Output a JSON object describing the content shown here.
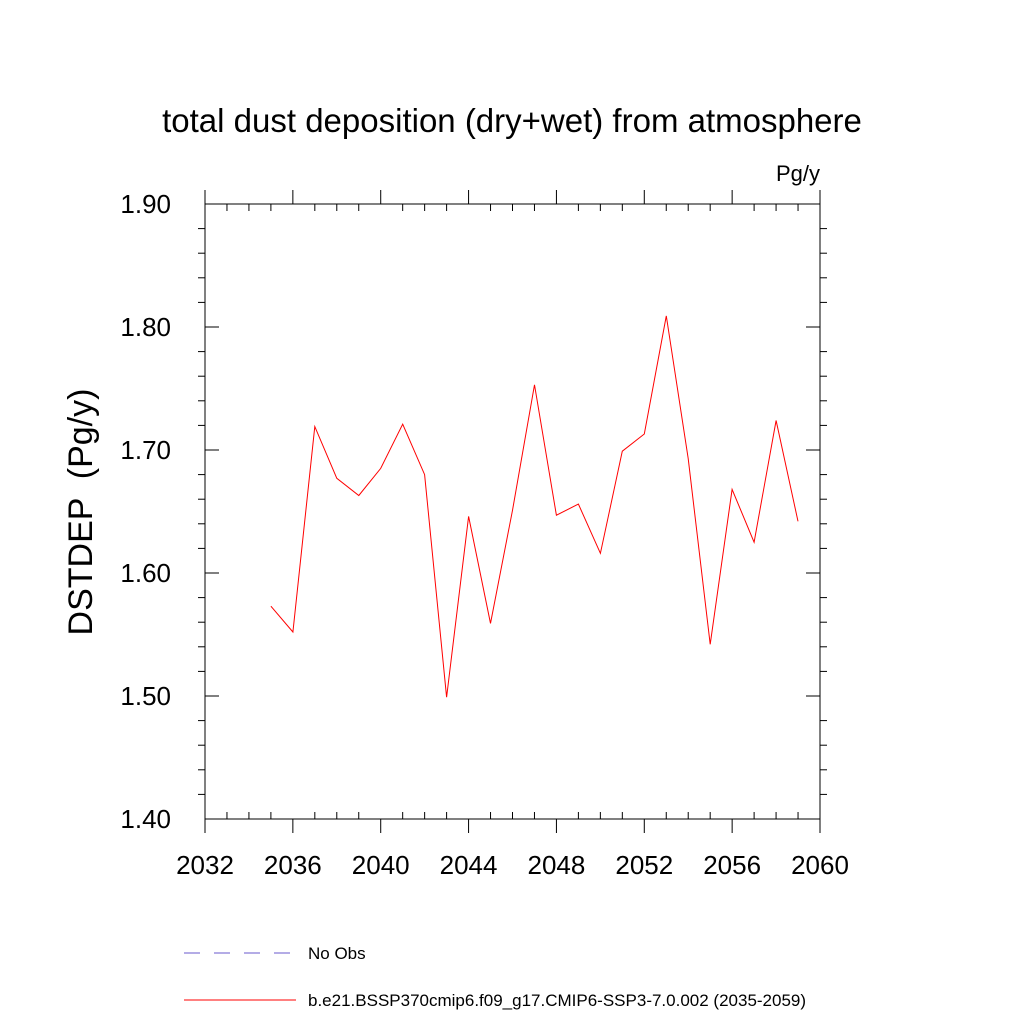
{
  "chart_data": {
    "type": "line",
    "title": "total dust deposition (dry+wet) from atmosphere",
    "units_label": "Pg/y",
    "xlabel": "",
    "ylabel": "DSTDEP  (Pg/y)",
    "xlim": [
      2032,
      2060
    ],
    "ylim": [
      1.4,
      1.9
    ],
    "x_ticks": [
      2032,
      2036,
      2040,
      2044,
      2048,
      2052,
      2056,
      2060
    ],
    "x_tick_labels": [
      "2032",
      "2036",
      "2040",
      "2044",
      "2048",
      "2052",
      "2056",
      "2060"
    ],
    "y_ticks": [
      1.4,
      1.5,
      1.6,
      1.7,
      1.8,
      1.9
    ],
    "y_tick_labels": [
      "1.40",
      "1.50",
      "1.60",
      "1.70",
      "1.80",
      "1.90"
    ],
    "x_minor_step": 1,
    "y_minor_step": 0.02,
    "grid": false,
    "legend_position": "bottom",
    "series": [
      {
        "name": "b.e21.BSSP370cmip6.f09_g17.CMIP6-SSP3-7.0.002 (2035-2059)",
        "color": "#ff0000",
        "style": "solid",
        "x": [
          2035,
          2036,
          2037,
          2038,
          2039,
          2040,
          2041,
          2042,
          2043,
          2044,
          2045,
          2046,
          2047,
          2048,
          2049,
          2050,
          2051,
          2052,
          2053,
          2054,
          2055,
          2056,
          2057,
          2058,
          2059
        ],
        "values": [
          1.573,
          1.552,
          1.719,
          1.677,
          1.663,
          1.685,
          1.721,
          1.68,
          1.499,
          1.646,
          1.559,
          1.651,
          1.753,
          1.647,
          1.656,
          1.616,
          1.699,
          1.713,
          1.809,
          1.693,
          1.542,
          1.668,
          1.625,
          1.724,
          1.642
        ]
      }
    ],
    "legend": [
      {
        "label": "No Obs",
        "color": "#6a5acd",
        "style": "dashed"
      },
      {
        "label": "b.e21.BSSP370cmip6.f09_g17.CMIP6-SSP3-7.0.002 (2035-2059)",
        "color": "#ff0000",
        "style": "solid"
      }
    ]
  }
}
